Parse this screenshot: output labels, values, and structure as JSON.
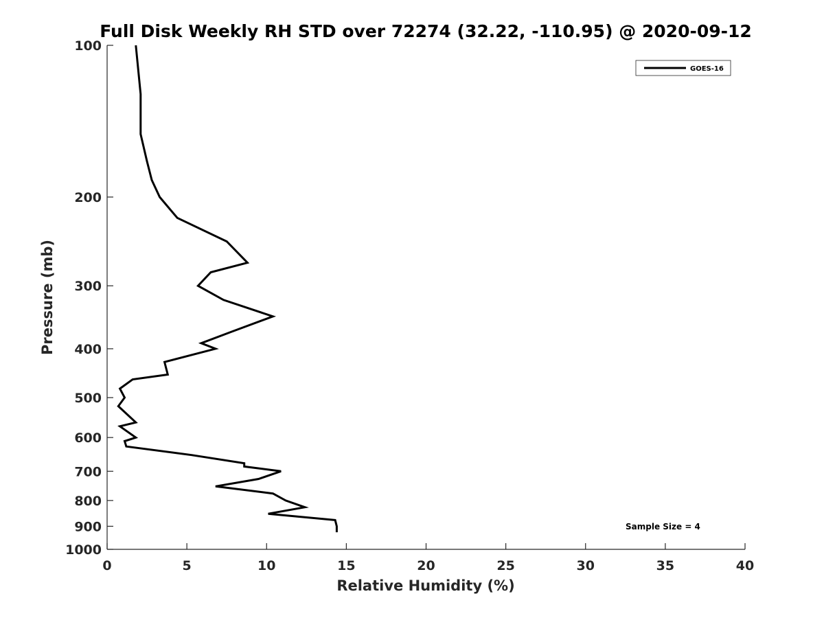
{
  "chart_data": {
    "type": "line",
    "title": "Full Disk Weekly RH STD over 72274 (32.22, -110.95) @ 2020-09-12",
    "xlabel": "Relative Humidity (%)",
    "ylabel": "Pressure (mb)",
    "xlim": [
      0,
      40
    ],
    "ylim": [
      100,
      1000
    ],
    "y_scale": "log",
    "y_reversed": true,
    "x_ticks": [
      "0",
      "5",
      "10",
      "15",
      "20",
      "25",
      "30",
      "35",
      "40"
    ],
    "y_ticks": [
      "100",
      "200",
      "300",
      "400",
      "500",
      "600",
      "700",
      "800",
      "900",
      "1000"
    ],
    "grid": false,
    "legend_position": "top-right",
    "annotation": "Sample Size = 4",
    "series": [
      {
        "name": "GOES-16",
        "color": "#000000",
        "x": [
          1.8,
          2.1,
          2.1,
          2.5,
          2.8,
          3.3,
          4.4,
          7.5,
          8.8,
          6.5,
          5.7,
          7.3,
          10.4,
          7.8,
          5.9,
          6.8,
          3.6,
          3.8,
          1.6,
          0.8,
          1.1,
          0.7,
          1.8,
          0.8,
          1.8,
          1.1,
          1.2,
          5.3,
          8.6,
          8.6,
          10.9,
          9.5,
          6.8,
          10.4,
          11.2,
          12.4,
          10.1,
          14.3,
          14.4,
          14.4
        ],
        "y": [
          100,
          125,
          150,
          170,
          185,
          200,
          220,
          245,
          270,
          282,
          300,
          320,
          345,
          370,
          390,
          400,
          425,
          450,
          460,
          480,
          500,
          520,
          560,
          570,
          600,
          610,
          625,
          650,
          675,
          685,
          700,
          725,
          750,
          775,
          800,
          825,
          850,
          875,
          900,
          925
        ]
      }
    ]
  }
}
